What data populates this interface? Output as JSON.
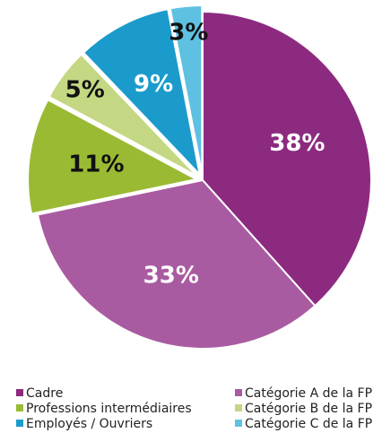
{
  "chart_data": {
    "type": "pie",
    "categories": [
      "Cadre",
      "Catégorie A de la FP",
      "Professions intermédiaires",
      "Catégorie B de la FP",
      "Employés / Ouvriers",
      "Catégorie C de la FP"
    ],
    "values": [
      38,
      33,
      11,
      5,
      9,
      3
    ],
    "value_labels": [
      "38%",
      "33%",
      "11%",
      "5%",
      "9%",
      "3%"
    ],
    "colors": [
      "#8c2a80",
      "#a95ba1",
      "#9bba34",
      "#c4d782",
      "#1b9bcb",
      "#5fc1e1"
    ]
  }
}
